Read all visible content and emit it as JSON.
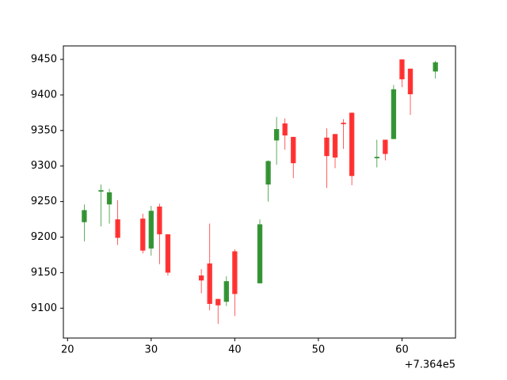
{
  "chart_data": {
    "type": "candlestick",
    "x": [
      736422,
      736424,
      736425,
      736426,
      736429,
      736430,
      736431,
      736432,
      736436,
      736437,
      736438,
      736439,
      736440,
      736443,
      736444,
      736445,
      736446,
      736447,
      736451,
      736452,
      736453,
      736454,
      736457,
      736458,
      736459,
      736460,
      736461,
      736464
    ],
    "open": [
      9221,
      9264,
      9246,
      9225,
      9226,
      9184,
      9243,
      9204,
      9146,
      9163,
      9113,
      9109,
      9180,
      9135,
      9274,
      9336,
      9360,
      9341,
      9340,
      9345,
      9361,
      9375,
      9311,
      9337,
      9338,
      9450,
      9437,
      9433
    ],
    "high": [
      9246,
      9274,
      9268,
      9252,
      9233,
      9244,
      9247,
      9204,
      9155,
      9219,
      9113,
      9145,
      9183,
      9225,
      9308,
      9369,
      9367,
      9341,
      9353,
      9345,
      9366,
      9375,
      9337,
      9337,
      9414,
      9450,
      9437,
      9448
    ],
    "low": [
      9194,
      9215,
      9219,
      9189,
      9177,
      9174,
      9162,
      9146,
      9121,
      9097,
      9078,
      9103,
      9089,
      9135,
      9250,
      9302,
      9323,
      9283,
      9269,
      9297,
      9324,
      9273,
      9298,
      9308,
      9338,
      9411,
      9372,
      9423
    ],
    "close": [
      9238,
      9266,
      9263,
      9199,
      9181,
      9237,
      9204,
      9150,
      9139,
      9106,
      9104,
      9138,
      9120,
      9218,
      9307,
      9352,
      9343,
      9304,
      9314,
      9312,
      9359,
      9286,
      9313,
      9317,
      9408,
      9422,
      9401,
      9446
    ],
    "up_color": "#228b22",
    "down_color": "#ff2020",
    "xlim": [
      736419.5,
      736466.4
    ],
    "ylim": [
      9058,
      9469
    ],
    "xticks": [
      {
        "value": 736420,
        "label": "20"
      },
      {
        "value": 736430,
        "label": "30"
      },
      {
        "value": 736440,
        "label": "40"
      },
      {
        "value": 736450,
        "label": "50"
      },
      {
        "value": 736460,
        "label": "60"
      }
    ],
    "yticks": [
      9100,
      9150,
      9200,
      9250,
      9300,
      9350,
      9400,
      9450
    ],
    "x_offset_label": "+7.364e5"
  }
}
